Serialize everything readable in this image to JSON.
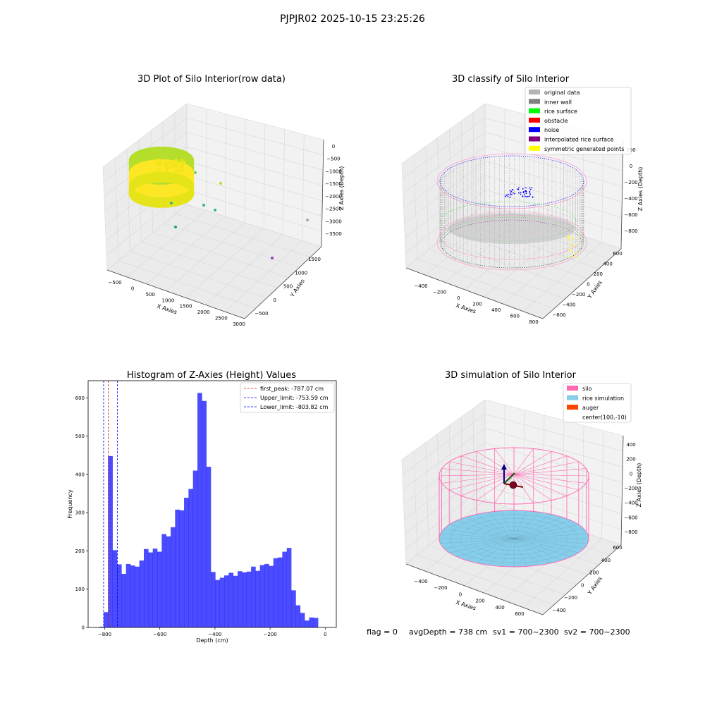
{
  "figure": {
    "suptitle": "PJPJR02 2025-10-15 23:25:26",
    "footer": {
      "flag": "flag = 0",
      "avg_depth": "avgDepth = 738 cm",
      "sv1": "sv1 = 700~2300",
      "sv2": "sv2 = 700~2300"
    }
  },
  "panel1": {
    "title": "3D Plot of Silo Interior(row data)",
    "xlabel": "X Axies",
    "ylabel": "Y Axies",
    "zlabel": "Z Axies (Depth)",
    "xticks": [
      "−500",
      "0",
      "500",
      "1000",
      "1500",
      "2000",
      "2500",
      "3000"
    ],
    "yticks": [
      "−500",
      "0",
      "500",
      "1000",
      "1500"
    ],
    "zticks": [
      "0",
      "−500",
      "−1000",
      "−1500",
      "−2000",
      "−2500",
      "−3000",
      "−3500"
    ],
    "colormap": [
      "#fde725",
      "#b5de2b",
      "#6ece58",
      "#35b779",
      "#1f9e89",
      "#6a4c93"
    ]
  },
  "panel2": {
    "title": "3D classify of Silo Interior",
    "xlabel": "X Axies",
    "ylabel": "Y Axies",
    "zlabel": "Z Axies (Depth)",
    "xticks": [
      "−400",
      "−200",
      "0",
      "200",
      "400",
      "600",
      "800"
    ],
    "yticks": [
      "−600",
      "−400",
      "−200",
      "0",
      "200",
      "400",
      "600"
    ],
    "zticks": [
      "200",
      "0",
      "−200",
      "−400",
      "−600",
      "−800"
    ],
    "legend": [
      {
        "label": "original data",
        "color": "#b4b4b4"
      },
      {
        "label": "inner wall",
        "color": "#808080"
      },
      {
        "label": "rice surface",
        "color": "#00ff00"
      },
      {
        "label": "obstacle",
        "color": "#ff0000"
      },
      {
        "label": "noise",
        "color": "#0000ff"
      },
      {
        "label": "interpolated rice surface",
        "color": "#800080"
      },
      {
        "label": "symmetric generated points",
        "color": "#ffff00"
      }
    ],
    "legend_position": "upper right"
  },
  "panel4": {
    "title": "3D simulation of Silo Interior",
    "xlabel": "X Axies",
    "ylabel": "Y Axies",
    "zlabel": "Z Axies (Depth)",
    "xticks": [
      "−400",
      "−200",
      "0",
      "200",
      "400",
      "600"
    ],
    "yticks": [
      "−400",
      "−200",
      "0",
      "200",
      "400",
      "600"
    ],
    "zticks": [
      "400",
      "200",
      "0",
      "−200",
      "−400",
      "−600",
      "−800"
    ],
    "legend": [
      {
        "label": "silo",
        "color": "#ff69b4"
      },
      {
        "label": "rice simulation",
        "color": "#87ceeb"
      },
      {
        "label": "auger",
        "color": "#ff4500"
      },
      {
        "label": "center(100,-10)",
        "color": ""
      }
    ],
    "legend_position": "upper right"
  },
  "chart_data": {
    "type": "bar",
    "title": "Histogram of Z-Axies (Height) Values",
    "xlabel": "Depth (cm)",
    "ylabel": "Frequency",
    "xlim": [
      -860,
      40
    ],
    "ylim": [
      0,
      645
    ],
    "xticks": [
      -800,
      -600,
      -400,
      -200,
      0
    ],
    "yticks": [
      0,
      100,
      200,
      300,
      400,
      500,
      600
    ],
    "bar_color": "#0000ff",
    "bins": [
      {
        "x": -820.0,
        "v": 2
      },
      {
        "x": -803.8,
        "v": 40
      },
      {
        "x": -787.6,
        "v": 448
      },
      {
        "x": -771.4,
        "v": 202
      },
      {
        "x": -755.2,
        "v": 165
      },
      {
        "x": -739.0,
        "v": 140
      },
      {
        "x": -722.8,
        "v": 166
      },
      {
        "x": -706.6,
        "v": 162
      },
      {
        "x": -690.4,
        "v": 159
      },
      {
        "x": -674.2,
        "v": 175
      },
      {
        "x": -658.0,
        "v": 205
      },
      {
        "x": -641.8,
        "v": 196
      },
      {
        "x": -625.6,
        "v": 206
      },
      {
        "x": -609.4,
        "v": 198
      },
      {
        "x": -593.2,
        "v": 244
      },
      {
        "x": -577.0,
        "v": 238
      },
      {
        "x": -560.8,
        "v": 262
      },
      {
        "x": -544.6,
        "v": 308
      },
      {
        "x": -528.4,
        "v": 306
      },
      {
        "x": -512.2,
        "v": 339
      },
      {
        "x": -496.0,
        "v": 362
      },
      {
        "x": -479.8,
        "v": 410
      },
      {
        "x": -463.6,
        "v": 613
      },
      {
        "x": -447.4,
        "v": 592
      },
      {
        "x": -431.2,
        "v": 420
      },
      {
        "x": -415.0,
        "v": 145
      },
      {
        "x": -398.8,
        "v": 124
      },
      {
        "x": -382.6,
        "v": 130
      },
      {
        "x": -366.4,
        "v": 136
      },
      {
        "x": -350.2,
        "v": 143
      },
      {
        "x": -334.0,
        "v": 135
      },
      {
        "x": -317.8,
        "v": 147
      },
      {
        "x": -301.6,
        "v": 144
      },
      {
        "x": -285.4,
        "v": 146
      },
      {
        "x": -269.2,
        "v": 159
      },
      {
        "x": -253.0,
        "v": 148
      },
      {
        "x": -236.8,
        "v": 163
      },
      {
        "x": -220.6,
        "v": 166
      },
      {
        "x": -204.4,
        "v": 161
      },
      {
        "x": -188.2,
        "v": 181
      },
      {
        "x": -172.0,
        "v": 183
      },
      {
        "x": -155.8,
        "v": 198
      },
      {
        "x": -139.6,
        "v": 208
      },
      {
        "x": -123.4,
        "v": 97
      },
      {
        "x": -107.2,
        "v": 58
      },
      {
        "x": -91.0,
        "v": 38
      },
      {
        "x": -74.8,
        "v": 18
      },
      {
        "x": -58.6,
        "v": 26
      },
      {
        "x": -42.4,
        "v": 25
      }
    ],
    "bin_width": 16.2,
    "vlines": [
      {
        "x": -787.07,
        "color": "#ff0000",
        "label": "first_peak: -787.07 cm"
      },
      {
        "x": -753.59,
        "color": "#0000ff",
        "label": "Upper_limit: -753.59 cm"
      },
      {
        "x": -803.82,
        "color": "#0000ff",
        "label": "Lower_limit: -803.82 cm"
      }
    ],
    "legend_position": "upper right"
  }
}
